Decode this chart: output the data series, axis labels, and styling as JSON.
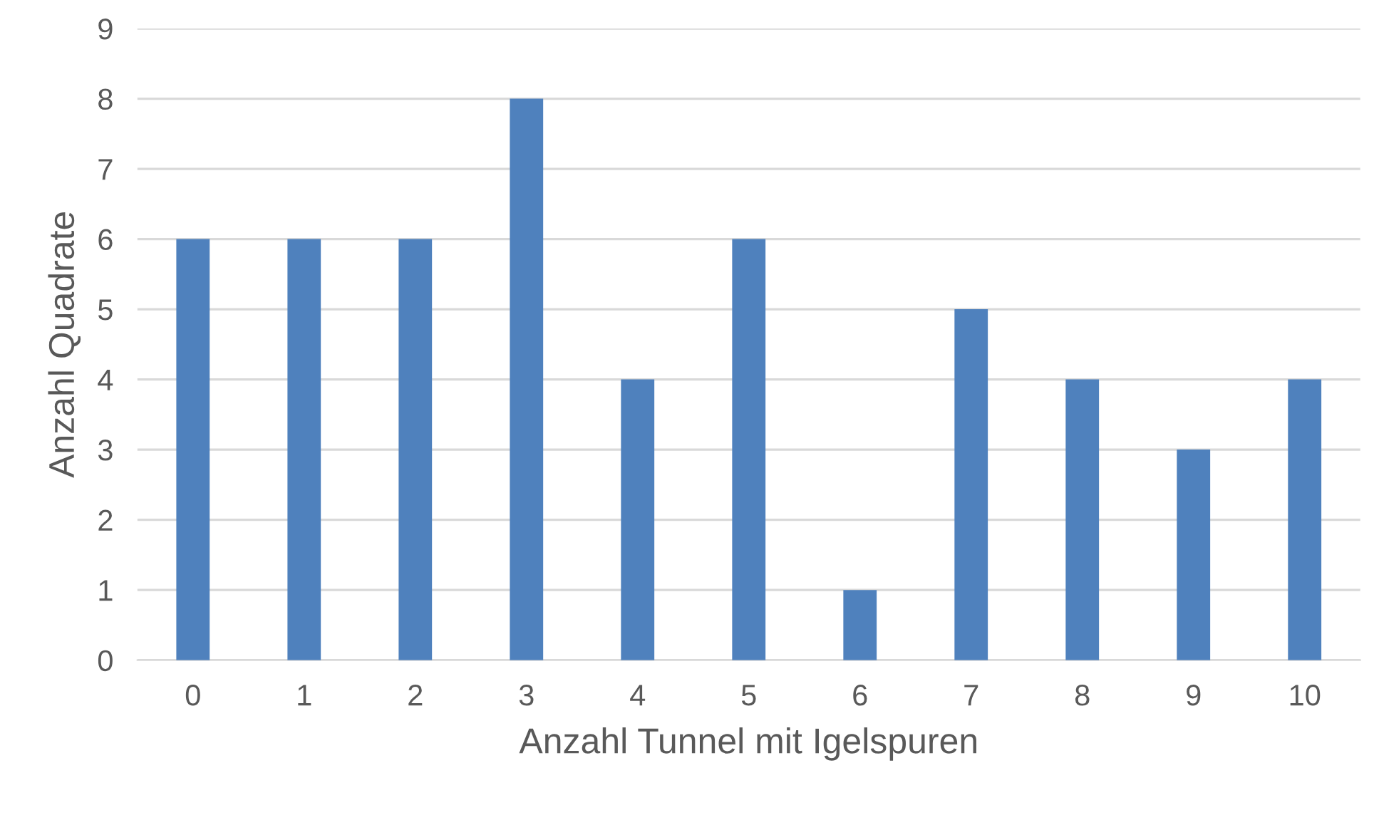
{
  "chart_data": {
    "type": "bar",
    "xlabel": "Anzahl Tunnel mit Igelspuren",
    "ylabel": "Anzahl Quadrate",
    "categories": [
      "0",
      "1",
      "2",
      "3",
      "4",
      "5",
      "6",
      "7",
      "8",
      "9",
      "10"
    ],
    "values": [
      6,
      6,
      6,
      8,
      4,
      6,
      1,
      5,
      4,
      3,
      4
    ],
    "color": "#4f81bd",
    "ylim": [
      0,
      9
    ],
    "yticks": [
      0,
      1,
      2,
      3,
      4,
      5,
      6,
      7,
      8,
      9
    ],
    "grid": "y",
    "legend": false
  }
}
